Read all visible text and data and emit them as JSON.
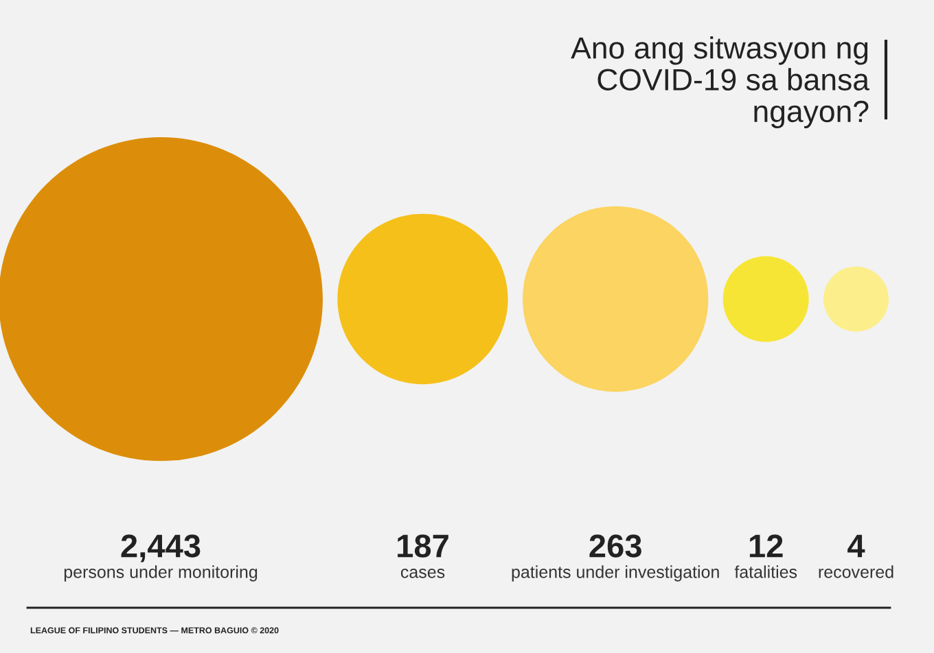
{
  "chart_data": {
    "type": "other",
    "title": "Ano ang sitwasyon ng\nCOVID-19 sa bansa\nngayon?",
    "categories": [
      "persons under monitoring",
      "cases",
      "patients under investigation",
      "fatalities",
      "recovered"
    ],
    "values": [
      2443,
      187,
      263,
      12,
      4
    ],
    "value_labels": [
      "2,443",
      "187",
      "263",
      "12",
      "4"
    ],
    "colors": [
      "#dc8e0a",
      "#f5c01a",
      "#fbd461",
      "#f7e535",
      "#fcee8b"
    ],
    "annotations": [
      "LEAGUE OF FILIPINO STUDENTS — METRO BAGUIO © 2020"
    ]
  }
}
